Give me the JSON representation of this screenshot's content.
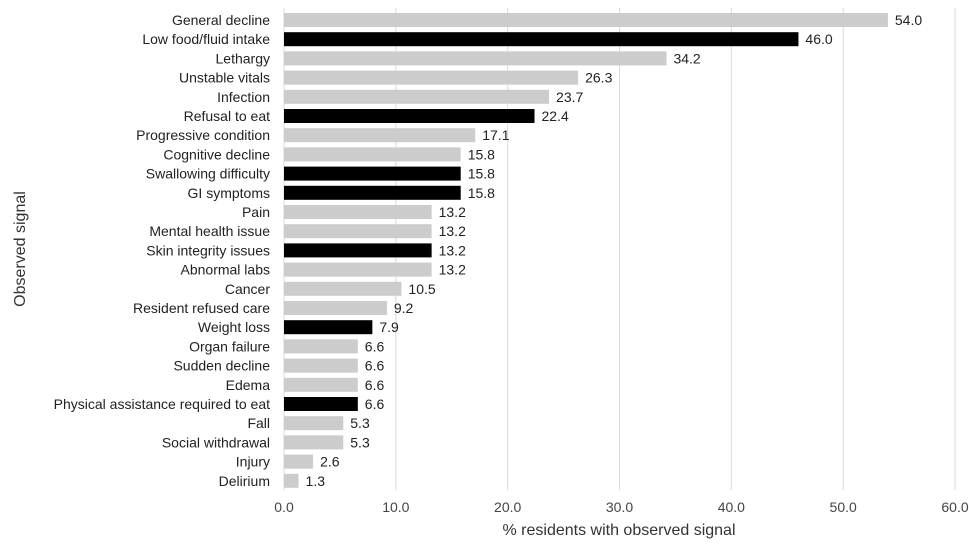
{
  "chart_data": {
    "type": "bar",
    "orientation": "horizontal",
    "title": "",
    "xlabel": "% residents with observed signal",
    "ylabel": "Observed signal",
    "xlim": [
      0,
      60
    ],
    "xticks": [
      "0.0",
      "10.0",
      "20.0",
      "30.0",
      "40.0",
      "50.0",
      "60.0"
    ],
    "grid": "vertical",
    "legend": "none",
    "colors": {
      "highlight": "#000000",
      "default": "#cccccc",
      "grid": "#d9d9d9"
    },
    "categories": [
      "General decline",
      "Low food/fluid intake",
      "Lethargy",
      "Unstable vitals",
      "Infection",
      "Refusal to eat",
      "Progressive condition",
      "Cognitive decline",
      "Swallowing difficulty",
      "GI symptoms",
      "Pain",
      "Mental health issue",
      "Skin integrity issues",
      "Abnormal labs",
      "Cancer",
      "Resident refused care",
      "Weight loss",
      "Organ failure",
      "Sudden decline",
      "Edema",
      "Physical assistance required to eat",
      "Fall",
      "Social withdrawal",
      "Injury",
      "Delirium"
    ],
    "values": [
      54.0,
      46.0,
      34.2,
      26.3,
      23.7,
      22.4,
      17.1,
      15.8,
      15.8,
      15.8,
      13.2,
      13.2,
      13.2,
      13.2,
      10.5,
      9.2,
      7.9,
      6.6,
      6.6,
      6.6,
      6.6,
      5.3,
      5.3,
      2.6,
      1.3
    ],
    "value_labels": [
      "54.0",
      "46.0",
      "34.2",
      "26.3",
      "23.7",
      "22.4",
      "17.1",
      "15.8",
      "15.8",
      "15.8",
      "13.2",
      "13.2",
      "13.2",
      "13.2",
      "10.5",
      "9.2",
      "7.9",
      "6.6",
      "6.6",
      "6.6",
      "6.6",
      "5.3",
      "5.3",
      "2.6",
      "1.3"
    ],
    "highlighted": [
      false,
      true,
      false,
      false,
      false,
      true,
      false,
      false,
      true,
      true,
      false,
      false,
      true,
      false,
      false,
      false,
      true,
      false,
      false,
      false,
      true,
      false,
      false,
      false,
      false
    ]
  }
}
